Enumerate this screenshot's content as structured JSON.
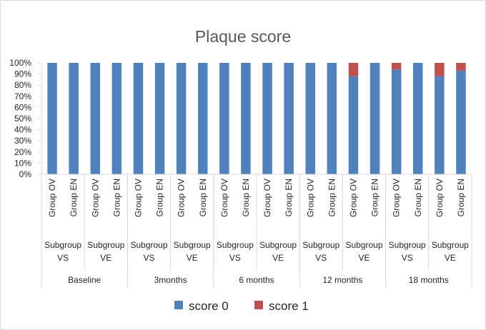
{
  "chart_data": {
    "type": "bar",
    "stacked": "percent",
    "title": "Plaque score",
    "y_ticks": [
      "0%",
      "10%",
      "20%",
      "30%",
      "40%",
      "50%",
      "60%",
      "70%",
      "80%",
      "90%",
      "100%"
    ],
    "ylim": [
      0,
      100
    ],
    "grid": false,
    "legend": "bottom",
    "categories": [
      {
        "group": "Group OV",
        "subgroup": "Subgroup VS",
        "time": "Baseline"
      },
      {
        "group": "Group EN",
        "subgroup": "Subgroup VS",
        "time": "Baseline"
      },
      {
        "group": "Group OV",
        "subgroup": "Subgroup VE",
        "time": "Baseline"
      },
      {
        "group": "Group EN",
        "subgroup": "Subgroup VE",
        "time": "Baseline"
      },
      {
        "group": "Group OV",
        "subgroup": "Subgroup VS",
        "time": "3months"
      },
      {
        "group": "Group EN",
        "subgroup": "Subgroup VS",
        "time": "3months"
      },
      {
        "group": "Group OV",
        "subgroup": "Subgroup VE",
        "time": "3months"
      },
      {
        "group": "Group EN",
        "subgroup": "Subgroup VE",
        "time": "3months"
      },
      {
        "group": "Group OV",
        "subgroup": "Subgroup VS",
        "time": "6 months"
      },
      {
        "group": "Group EN",
        "subgroup": "Subgroup VS",
        "time": "6 months"
      },
      {
        "group": "Group OV",
        "subgroup": "Subgroup VE",
        "time": "6 months"
      },
      {
        "group": "Group EN",
        "subgroup": "Subgroup VE",
        "time": "6 months"
      },
      {
        "group": "Group OV",
        "subgroup": "Subgroup VS",
        "time": "12 months"
      },
      {
        "group": "Group EN",
        "subgroup": "Subgroup VS",
        "time": "12 months"
      },
      {
        "group": "Group OV",
        "subgroup": "Subgroup VE",
        "time": "12 months"
      },
      {
        "group": "Group EN",
        "subgroup": "Subgroup VE",
        "time": "12 months"
      },
      {
        "group": "Group OV",
        "subgroup": "Subgroup VS",
        "time": "18 months"
      },
      {
        "group": "Group EN",
        "subgroup": "Subgroup VS",
        "time": "18 months"
      },
      {
        "group": "Group OV",
        "subgroup": "Subgroup VE",
        "time": "18 months"
      },
      {
        "group": "Group EN",
        "subgroup": "Subgroup VE",
        "time": "18 months"
      }
    ],
    "time_groups": [
      "Baseline",
      "3months",
      "6 months",
      "12 months",
      "18 months"
    ],
    "subgroups": [
      {
        "line1": "Subgroup",
        "line2": "VS"
      },
      {
        "line1": "Subgroup",
        "line2": "VE"
      }
    ],
    "series": [
      {
        "name": "score 0",
        "color": "#4f81bd",
        "values": [
          100,
          100,
          100,
          100,
          100,
          100,
          100,
          100,
          100,
          100,
          100,
          100,
          100,
          100,
          88,
          100,
          94,
          100,
          88,
          93
        ]
      },
      {
        "name": "score 1",
        "color": "#c0504d",
        "values": [
          0,
          0,
          0,
          0,
          0,
          0,
          0,
          0,
          0,
          0,
          0,
          0,
          0,
          0,
          12,
          0,
          6,
          0,
          12,
          7
        ]
      }
    ]
  }
}
